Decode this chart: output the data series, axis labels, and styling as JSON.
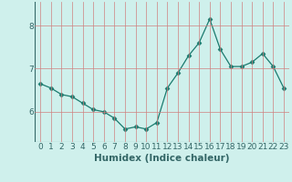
{
  "x": [
    0,
    1,
    2,
    3,
    4,
    5,
    6,
    7,
    8,
    9,
    10,
    11,
    12,
    13,
    14,
    15,
    16,
    17,
    18,
    19,
    20,
    21,
    22,
    23
  ],
  "y": [
    6.65,
    6.55,
    6.4,
    6.35,
    6.2,
    6.05,
    6.0,
    5.85,
    5.6,
    5.65,
    5.6,
    5.75,
    6.55,
    6.9,
    7.3,
    7.6,
    8.15,
    7.45,
    7.05,
    7.05,
    7.15,
    7.35,
    7.05,
    6.55
  ],
  "line_color": "#1a7a6e",
  "marker": "D",
  "marker_size": 2.5,
  "background_color": "#cff0ec",
  "grid_color": "#d08080",
  "xlabel": "Humidex (Indice chaleur)",
  "xlim": [
    -0.5,
    23.5
  ],
  "ylim": [
    5.3,
    8.55
  ],
  "yticks": [
    6,
    7,
    8
  ],
  "xlabel_fontsize": 7.5,
  "tick_fontsize": 6.5,
  "axis_color": "#336666"
}
